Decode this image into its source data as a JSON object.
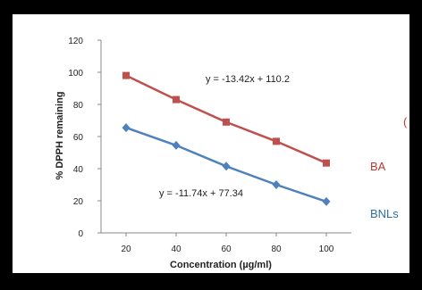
{
  "chart_data": {
    "type": "line",
    "x": [
      20,
      40,
      60,
      80,
      100
    ],
    "xlabel": "Concentration (µg/ml)",
    "ylabel": "% DPPH remaining",
    "ylim": [
      0,
      120
    ],
    "yticks": [
      0,
      20,
      40,
      60,
      80,
      100,
      120
    ],
    "grid": false,
    "legend_position": "right",
    "series": [
      {
        "name": "BA",
        "values": [
          98,
          83,
          69,
          57,
          43.5
        ],
        "color": "#c0504d",
        "marker": "square"
      },
      {
        "name": "BNLs",
        "values": [
          65.5,
          54.5,
          41.5,
          30,
          19.5
        ],
        "color": "#4f81bd",
        "marker": "diamond"
      }
    ],
    "annotations": [
      {
        "text": "y = -13.42x + 110.2",
        "series": "BA"
      },
      {
        "text": "y = -11.74x + 77.34",
        "series": "BNLs"
      }
    ]
  }
}
